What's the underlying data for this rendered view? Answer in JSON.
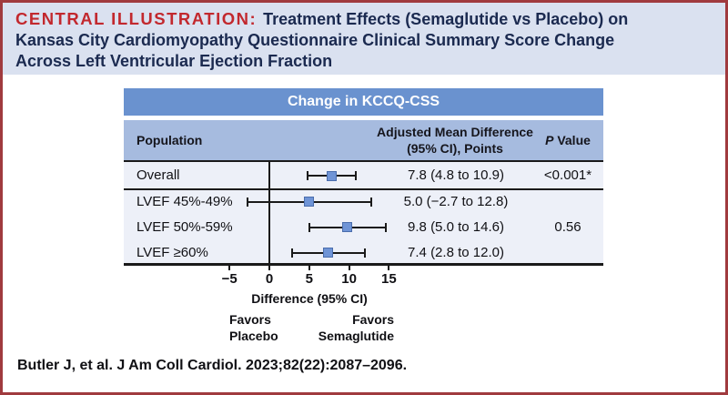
{
  "figure": {
    "eyebrow": "CENTRAL ILLUSTRATION:",
    "title_line1": "Treatment Effects (Semaglutide vs Placebo) on",
    "title_line2": "Kansas City Cardiomyopathy Questionnaire Clinical Summary Score Change",
    "title_line3": "Across Left Ventricular Ejection Fraction"
  },
  "table": {
    "title": "Change in KCCQ-CSS",
    "col_population": "Population",
    "col_amd_line1": "Adjusted Mean Difference",
    "col_amd_line2": "(95% CI), Points",
    "col_p_italic": "P",
    "col_p_rest": " Value"
  },
  "chart_data": {
    "type": "forest",
    "title": "Change in KCCQ-CSS",
    "xlabel": "Difference (95% CI)",
    "x_ticks": [
      -5,
      0,
      5,
      10,
      15
    ],
    "x_tick_labels": [
      "−5",
      "0",
      "5",
      "10",
      "15"
    ],
    "xlim": [
      -8.5,
      19
    ],
    "reference_line_x": 0,
    "favors_left": [
      "Favors",
      "Placebo"
    ],
    "favors_right": [
      "Favors",
      "Semaglutide"
    ],
    "rows": [
      {
        "label": "Overall",
        "estimate": 7.8,
        "ci_low": 4.8,
        "ci_high": 10.9,
        "value_text": "7.8 (4.8 to 10.9)",
        "p_value": "<0.001*"
      },
      {
        "label": "LVEF 45%-49%",
        "estimate": 5.0,
        "ci_low": -2.7,
        "ci_high": 12.8,
        "value_text": "5.0 (−2.7 to 12.8)",
        "p_value": ""
      },
      {
        "label": "LVEF 50%-59%",
        "estimate": 9.8,
        "ci_low": 5.0,
        "ci_high": 14.6,
        "value_text": "9.8 (5.0 to 14.6)",
        "p_value": "0.56"
      },
      {
        "label": "LVEF ≥60%",
        "estimate": 7.4,
        "ci_low": 2.8,
        "ci_high": 12.0,
        "value_text": "7.4 (2.8 to 12.0)",
        "p_value": ""
      }
    ]
  },
  "colors": {
    "border_red": "#a03a3e",
    "eyebrow_red": "#c2282e",
    "navy": "#1b2a50",
    "header_band_bg": "#dae1f0",
    "table_title_bg": "#6a92cf",
    "col_header_bg": "#a6bbdf",
    "body_bg": "#edf0f8",
    "marker_fill": "#6f94d6",
    "marker_border": "#4a6dac",
    "line_black": "#1a1a1a"
  },
  "footer": {
    "citation": "Butler J, et al. J Am Coll Cardiol. 2023;82(22):2087–2096."
  }
}
